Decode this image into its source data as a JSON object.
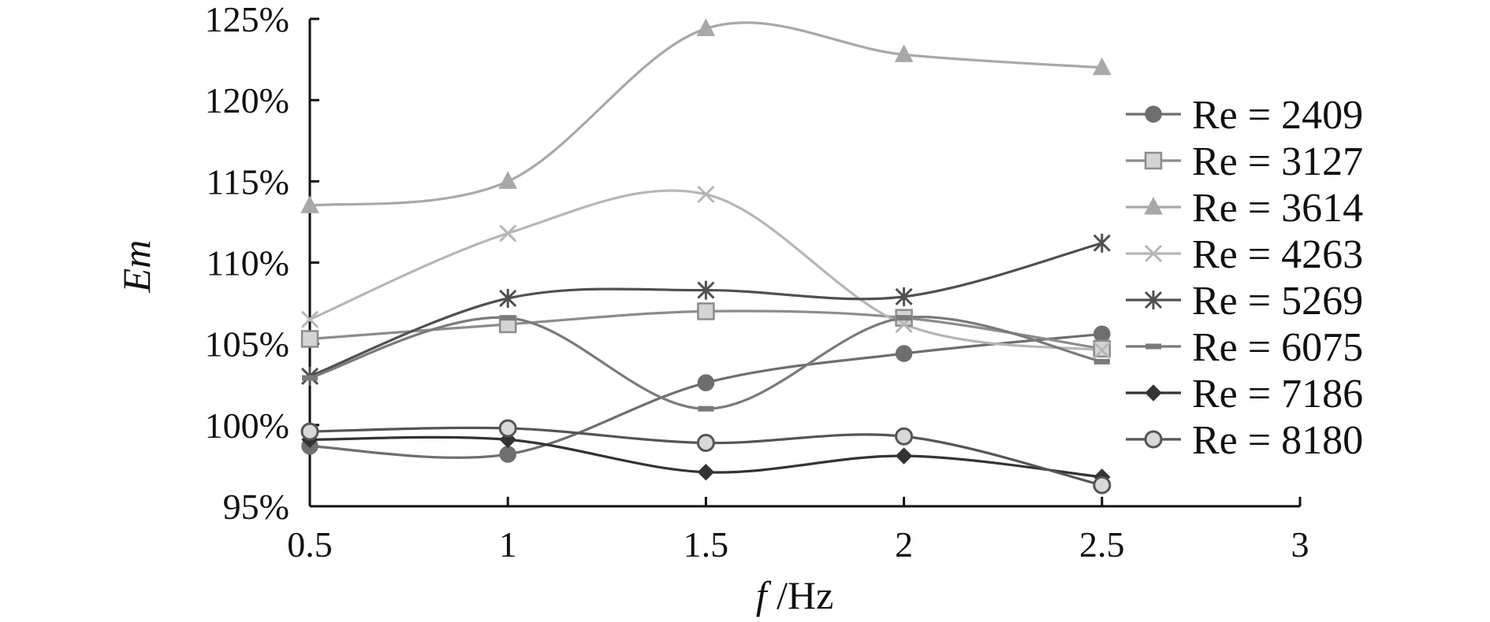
{
  "chart_data": {
    "type": "line",
    "xlabel_italic": "f",
    "xlabel_rest": " /Hz",
    "ylabel": "Em",
    "xlim": [
      0.5,
      3
    ],
    "ylim": [
      95,
      125
    ],
    "x_ticks": [
      "0.5",
      "1",
      "1.5",
      "2",
      "2.5",
      "3"
    ],
    "y_ticks": [
      "95%",
      "100%",
      "105%",
      "110%",
      "115%",
      "120%",
      "125%"
    ],
    "x": [
      0.5,
      1,
      1.5,
      2,
      2.5
    ],
    "legend_position": "right",
    "series": [
      {
        "name": "Re = 2409",
        "values": [
          98.7,
          98.2,
          102.6,
          104.4,
          105.6
        ],
        "color": "#6e6e6e",
        "marker": "circle"
      },
      {
        "name": "Re = 3127",
        "values": [
          105.3,
          106.2,
          107.0,
          106.6,
          104.7
        ],
        "color": "#8c8c8c",
        "marker": "square"
      },
      {
        "name": "Re = 3614",
        "values": [
          113.5,
          115.0,
          124.4,
          122.8,
          122.0
        ],
        "color": "#a8a8a8",
        "marker": "triangle"
      },
      {
        "name": "Re = 4263",
        "values": [
          106.5,
          111.8,
          114.2,
          106.2,
          104.6
        ],
        "color": "#b6b6b6",
        "marker": "x"
      },
      {
        "name": "Re = 5269",
        "values": [
          103.0,
          107.8,
          108.3,
          107.9,
          111.2
        ],
        "color": "#505050",
        "marker": "star"
      },
      {
        "name": "Re = 6075",
        "values": [
          102.9,
          106.6,
          101.0,
          106.6,
          103.9
        ],
        "color": "#7a7a7a",
        "marker": "dash"
      },
      {
        "name": "Re = 7186",
        "values": [
          99.1,
          99.1,
          97.1,
          98.1,
          96.8
        ],
        "color": "#333333",
        "marker": "diamond"
      },
      {
        "name": "Re = 8180",
        "values": [
          99.6,
          99.8,
          98.9,
          99.3,
          96.3
        ],
        "color": "#555555",
        "marker": "circle-open"
      }
    ]
  }
}
